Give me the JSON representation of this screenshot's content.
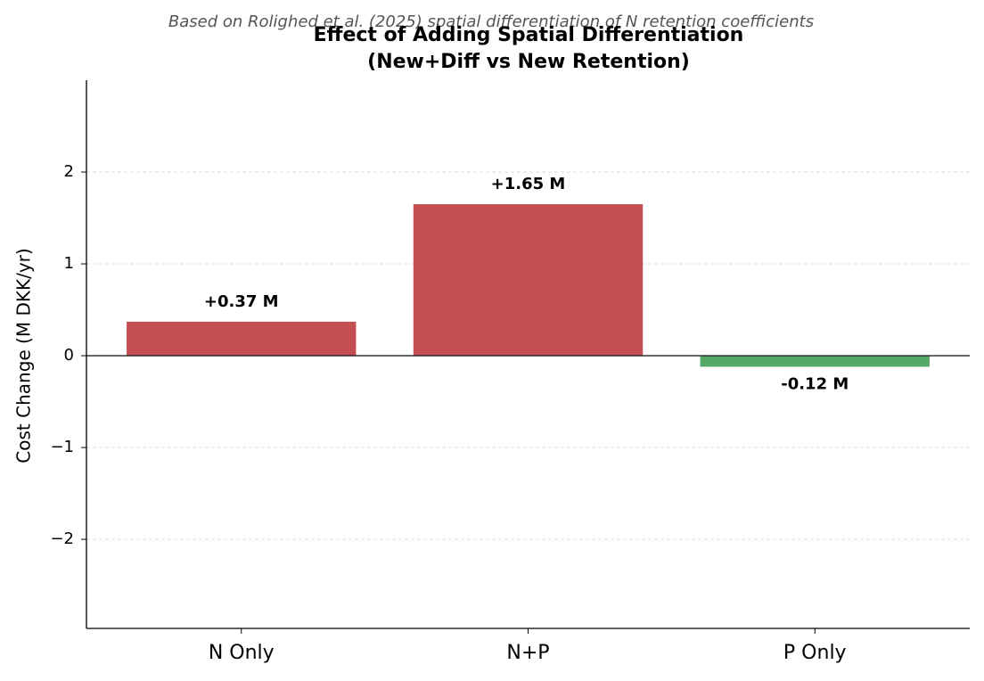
{
  "chart_data": {
    "type": "bar",
    "subtitle": "Based on Rolighed et al. (2025) spatial differentiation of N retention coefficients",
    "title": [
      "Effect of Adding Spatial Differentiation",
      "(New+Diff vs New Retention)"
    ],
    "y_label": "Cost Change (M DKK/yr)",
    "categories": [
      "N Only",
      "N+P",
      "P Only"
    ],
    "values": [
      0.37,
      1.65,
      -0.12
    ],
    "value_labels": [
      "+0.37 M",
      "+1.65 M",
      "-0.12 M"
    ],
    "colors": [
      "#c44e52",
      "#c44e52",
      "#55a868"
    ],
    "ylim": [
      -2.97,
      3.0
    ],
    "yticks": [
      {
        "value": -2,
        "label": "−2"
      },
      {
        "value": -1,
        "label": "−1"
      },
      0,
      1,
      2
    ],
    "grid": true
  }
}
